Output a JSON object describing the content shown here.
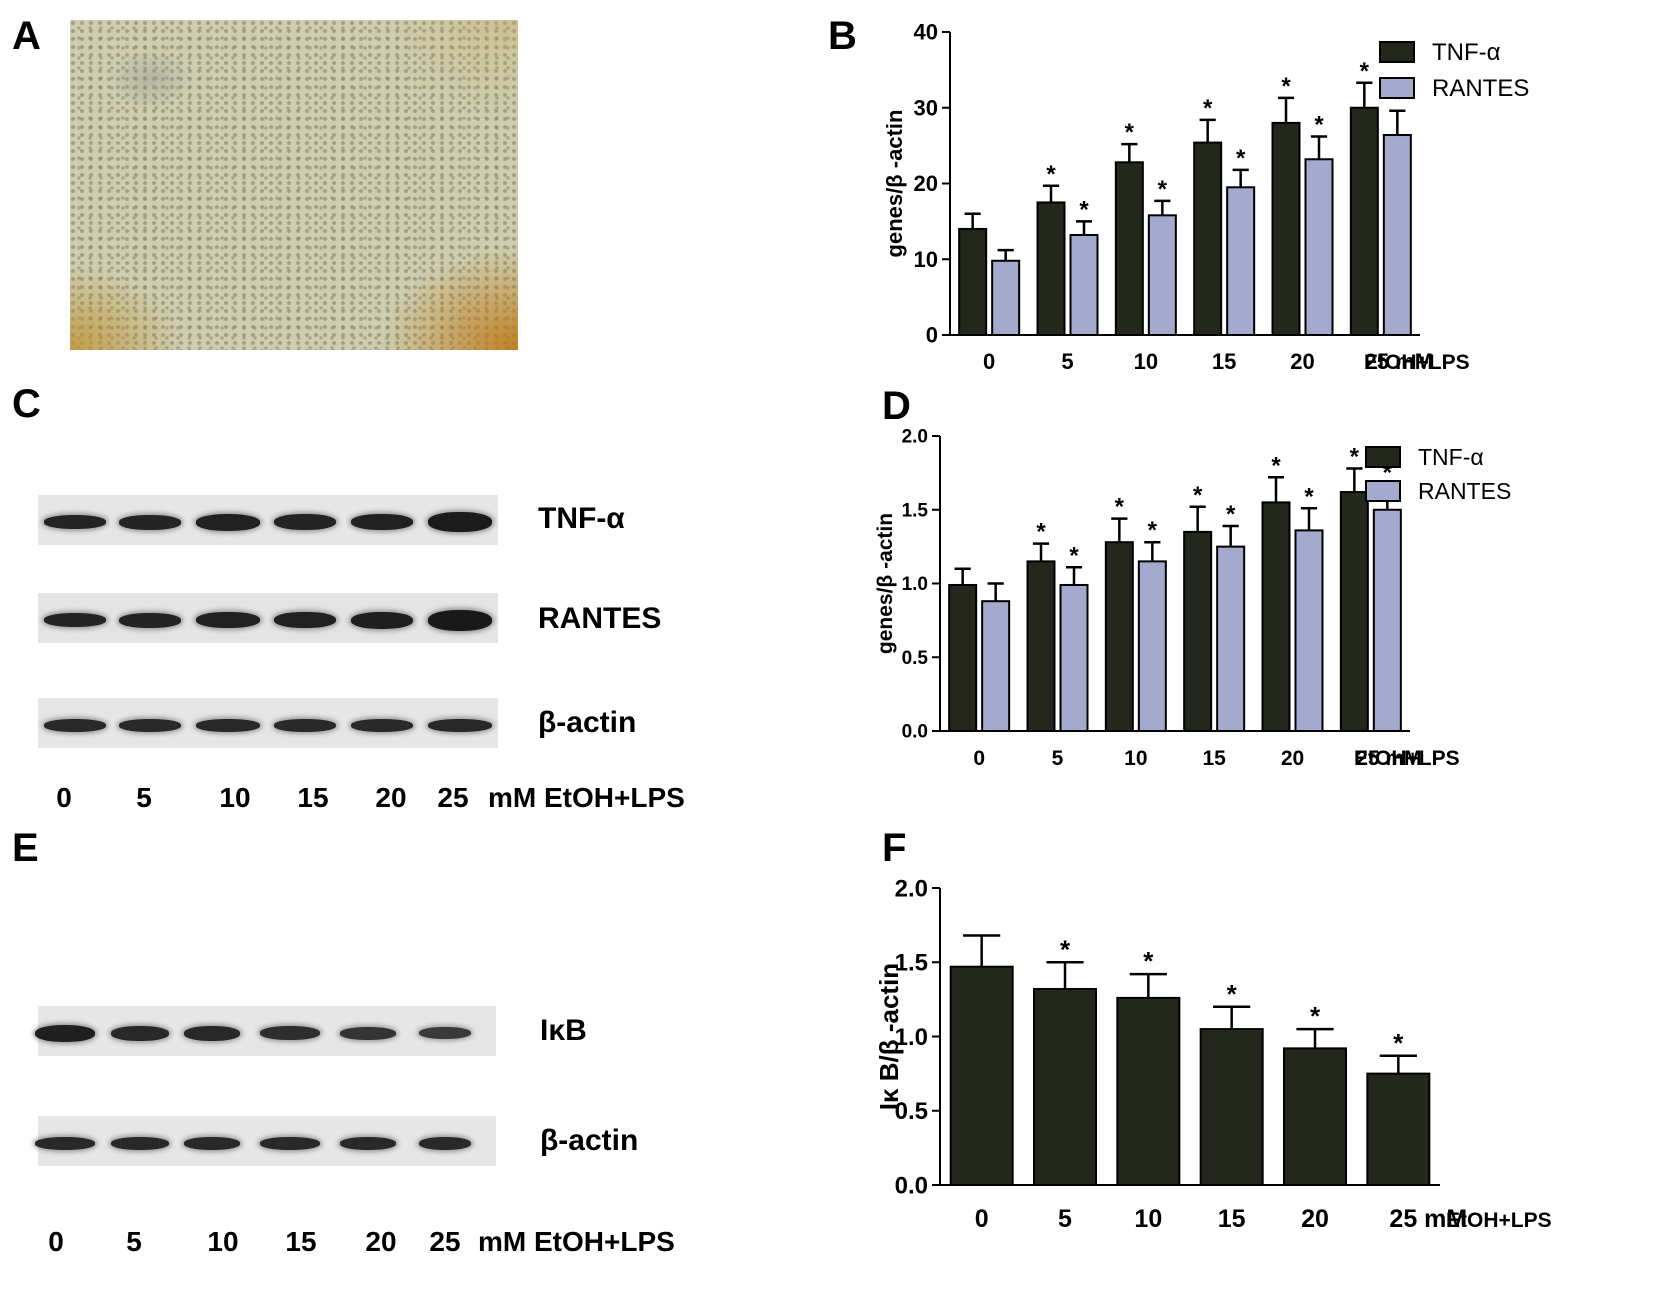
{
  "panel_letters": [
    "A",
    "B",
    "C",
    "D",
    "E",
    "F"
  ],
  "blots": {
    "C": {
      "rows": [
        "TNF-α",
        "RANTES",
        "β-actin"
      ],
      "lanes": [
        "0",
        "5",
        "10",
        "15",
        "20",
        "25"
      ],
      "footer": "mM EtOH+LPS"
    },
    "E": {
      "rows": [
        "IκB",
        "β-actin"
      ],
      "lanes": [
        "0",
        "5",
        "10",
        "15",
        "20",
        "25"
      ],
      "footer": "mM EtOH+LPS"
    }
  },
  "chart_data": [
    {
      "panel": "B",
      "type": "bar",
      "categories": [
        "0",
        "5",
        "10",
        "15",
        "20",
        "25 mM"
      ],
      "x_suffix": "EtOH+LPS",
      "ylabel": "genes/β -actin",
      "ylim": [
        0,
        40
      ],
      "yticks": [
        "0",
        "10",
        "20",
        "30",
        "40"
      ],
      "legend_position": "top-right",
      "series": [
        {
          "name": "TNF-α",
          "values": [
            14,
            17.5,
            22.8,
            25.4,
            28,
            30
          ],
          "errors": [
            2,
            2.2,
            2.4,
            3,
            3.3,
            3.3
          ],
          "significant": [
            false,
            true,
            true,
            true,
            true,
            true
          ],
          "color": "#23271c"
        },
        {
          "name": "RANTES",
          "values": [
            9.8,
            13.2,
            15.8,
            19.5,
            23.2,
            26.4
          ],
          "errors": [
            1.4,
            1.8,
            1.9,
            2.3,
            3,
            3.2
          ],
          "significant": [
            false,
            true,
            true,
            true,
            true,
            true
          ],
          "color": "#a4aace"
        }
      ],
      "significance_mark": "*"
    },
    {
      "panel": "D",
      "type": "bar",
      "categories": [
        "0",
        "5",
        "10",
        "15",
        "20",
        "25 mM"
      ],
      "x_suffix": "EtOH+LPS",
      "ylabel": "genes/β -actin",
      "ylim": [
        0,
        2.0
      ],
      "yticks": [
        "0.0",
        "0.5",
        "1.0",
        "1.5",
        "2.0"
      ],
      "legend_position": "top-right",
      "series": [
        {
          "name": "TNF-α",
          "values": [
            0.99,
            1.15,
            1.28,
            1.35,
            1.55,
            1.62
          ],
          "errors": [
            0.11,
            0.12,
            0.16,
            0.17,
            0.17,
            0.16
          ],
          "significant": [
            false,
            true,
            true,
            true,
            true,
            true
          ],
          "color": "#23271c"
        },
        {
          "name": "RANTES",
          "values": [
            0.88,
            0.99,
            1.15,
            1.25,
            1.36,
            1.5
          ],
          "errors": [
            0.12,
            0.12,
            0.13,
            0.14,
            0.15,
            0.17
          ],
          "significant": [
            false,
            true,
            true,
            true,
            true,
            true
          ],
          "color": "#a4aace"
        }
      ],
      "significance_mark": "*"
    },
    {
      "panel": "F",
      "type": "bar",
      "categories": [
        "0",
        "5",
        "10",
        "15",
        "20",
        "25 mM"
      ],
      "x_suffix": "EtOH+LPS",
      "ylabel": "Iκ B/β -actin",
      "ylim": [
        0,
        2.0
      ],
      "yticks": [
        "0.0",
        "0.5",
        "1.0",
        "1.5",
        "2.0"
      ],
      "legend_position": "none",
      "series": [
        {
          "values": [
            1.47,
            1.32,
            1.26,
            1.05,
            0.92,
            0.75
          ],
          "errors": [
            0.21,
            0.18,
            0.16,
            0.15,
            0.13,
            0.12
          ],
          "significant": [
            false,
            true,
            true,
            true,
            true,
            true
          ],
          "color": "#23271c"
        }
      ],
      "significance_mark": "*"
    }
  ]
}
